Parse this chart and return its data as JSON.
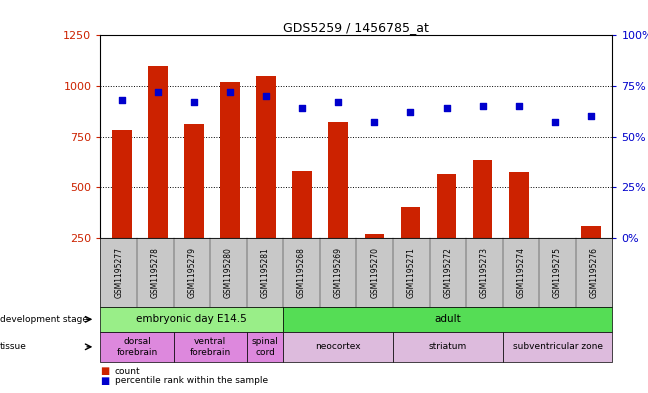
{
  "title": "GDS5259 / 1456785_at",
  "samples": [
    "GSM1195277",
    "GSM1195278",
    "GSM1195279",
    "GSM1195280",
    "GSM1195281",
    "GSM1195268",
    "GSM1195269",
    "GSM1195270",
    "GSM1195271",
    "GSM1195272",
    "GSM1195273",
    "GSM1195274",
    "GSM1195275",
    "GSM1195276"
  ],
  "counts": [
    780,
    1100,
    810,
    1020,
    1050,
    580,
    820,
    270,
    400,
    565,
    635,
    575,
    245,
    310
  ],
  "percentiles": [
    68,
    72,
    67,
    72,
    70,
    64,
    67,
    57,
    62,
    64,
    65,
    65,
    57,
    60
  ],
  "ylim_left": [
    250,
    1250
  ],
  "ylim_right": [
    0,
    100
  ],
  "yticks_left": [
    250,
    500,
    750,
    1000,
    1250
  ],
  "yticks_right": [
    0,
    25,
    50,
    75,
    100
  ],
  "bar_color": "#cc2200",
  "dot_color": "#0000cc",
  "background_color": "#ffffff",
  "tick_bg_color": "#c8c8c8",
  "dev_stage_groups": [
    {
      "label": "embryonic day E14.5",
      "start": 0,
      "end": 4,
      "color": "#99ee88"
    },
    {
      "label": "adult",
      "start": 5,
      "end": 13,
      "color": "#55dd55"
    }
  ],
  "tissue_groups": [
    {
      "label": "dorsal\nforebrain",
      "start": 0,
      "end": 1,
      "color": "#dd88dd"
    },
    {
      "label": "ventral\nforebrain",
      "start": 2,
      "end": 3,
      "color": "#dd88dd"
    },
    {
      "label": "spinal\ncord",
      "start": 4,
      "end": 4,
      "color": "#dd88dd"
    },
    {
      "label": "neocortex",
      "start": 5,
      "end": 7,
      "color": "#ddbbdd"
    },
    {
      "label": "striatum",
      "start": 8,
      "end": 10,
      "color": "#ddbbdd"
    },
    {
      "label": "subventricular zone",
      "start": 11,
      "end": 13,
      "color": "#ddbbdd"
    }
  ]
}
